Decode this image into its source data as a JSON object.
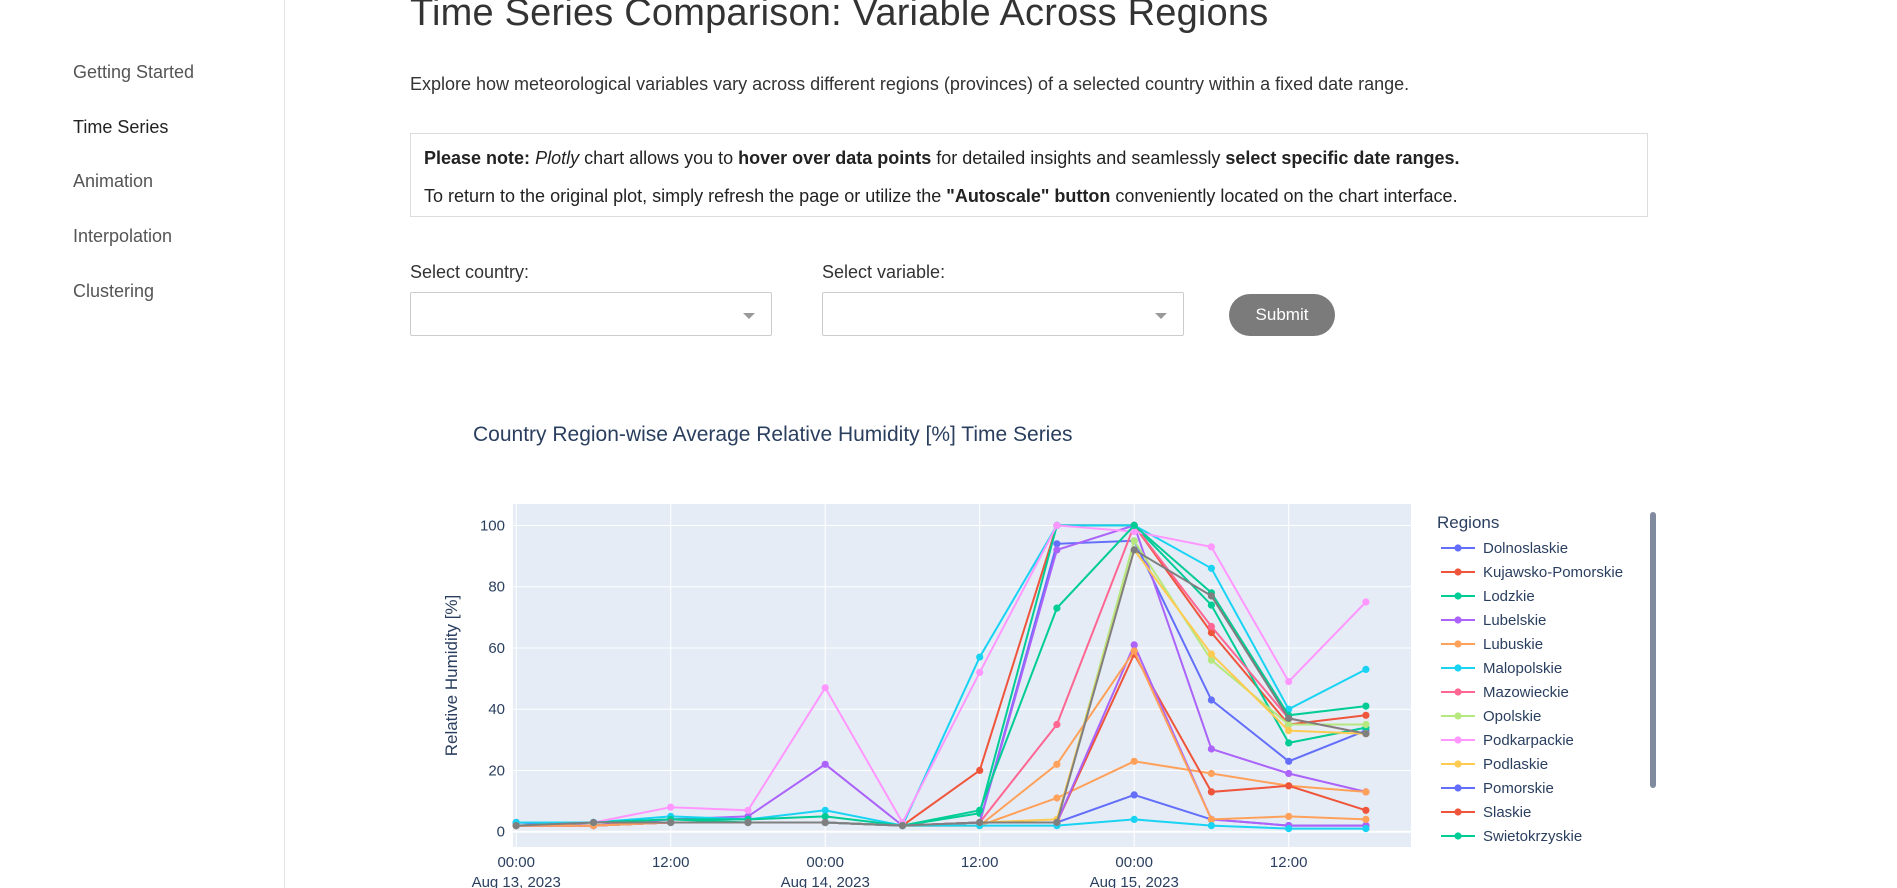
{
  "sidebar": {
    "items": [
      {
        "label": "Getting Started",
        "active": false
      },
      {
        "label": "Time Series",
        "active": true
      },
      {
        "label": "Animation",
        "active": false
      },
      {
        "label": "Interpolation",
        "active": false
      },
      {
        "label": "Clustering",
        "active": false
      }
    ]
  },
  "header": {
    "title": "Time Series Comparison: Variable Across Regions",
    "intro": "Explore how meteorological variables vary across different regions (provinces) of a selected country within a fixed date range."
  },
  "note": {
    "line1": {
      "lead": "Please note:",
      "plotly": "Plotly",
      "t1": " chart allows you to ",
      "b1": "hover over data points",
      "t2": " for detailed insights and seamlessly ",
      "b2": "select specific date ranges."
    },
    "line2": {
      "t1": "To return to the original plot, simply refresh the page or utilize the ",
      "b1": "\"Autoscale\" button",
      "t2": " conveniently located on the chart interface."
    }
  },
  "form": {
    "country_label": "Select country:",
    "country_value": "",
    "variable_label": "Select variable:",
    "variable_value": "",
    "submit_label": "Submit"
  },
  "chart_data": {
    "type": "line",
    "title": "Country Region-wise Average Relative Humidity [%] Time Series",
    "xlabel": "",
    "ylabel": "Relative Humidity [%]",
    "ylim": [
      -5,
      107
    ],
    "xlim": [
      "2023-08-12 23:45",
      "2023-08-15 21:30"
    ],
    "x_ticks": [
      "2023-08-13 00:00",
      "2023-08-13 12:00",
      "2023-08-14 00:00",
      "2023-08-14 12:00",
      "2023-08-15 00:00",
      "2023-08-15 12:00"
    ],
    "x_tick_labels": [
      [
        "00:00",
        "Aug 13, 2023"
      ],
      [
        "12:00",
        ""
      ],
      [
        "00:00",
        "Aug 14, 2023"
      ],
      [
        "12:00",
        ""
      ],
      [
        "00:00",
        "Aug 15, 2023"
      ],
      [
        "12:00",
        ""
      ]
    ],
    "y_ticks": [
      0,
      20,
      40,
      60,
      80,
      100
    ],
    "grid": true,
    "legend_title": "Regions",
    "legend_position": "right",
    "x": [
      "2023-08-13 00:00",
      "2023-08-13 06:00",
      "2023-08-13 12:00",
      "2023-08-13 18:00",
      "2023-08-14 00:00",
      "2023-08-14 06:00",
      "2023-08-14 12:00",
      "2023-08-14 18:00",
      "2023-08-15 00:00",
      "2023-08-15 06:00",
      "2023-08-15 12:00",
      "2023-08-15 18:00"
    ],
    "series": [
      {
        "name": "Dolnoslaskie",
        "color": "#636efa",
        "values": [
          3,
          2,
          3,
          3,
          3,
          2,
          3,
          94,
          95,
          43,
          23,
          33
        ]
      },
      {
        "name": "Kujawsko-Pomorskie",
        "color": "#ef553b",
        "values": [
          2,
          2,
          3,
          3,
          3,
          2,
          20,
          100,
          100,
          65,
          35,
          38
        ]
      },
      {
        "name": "Lodzkie",
        "color": "#00cc96",
        "values": [
          3,
          3,
          4,
          3,
          3,
          2,
          6,
          100,
          100,
          74,
          29,
          34
        ]
      },
      {
        "name": "Lubelskie",
        "color": "#ab63fa",
        "values": [
          2,
          2,
          4,
          5,
          22,
          2,
          3,
          92,
          100,
          27,
          19,
          13
        ]
      },
      {
        "name": "Lubuskie",
        "color": "#ffa15a",
        "values": [
          2,
          2,
          3,
          3,
          3,
          2,
          2,
          11,
          23,
          19,
          15,
          13
        ]
      },
      {
        "name": "Malopolskie",
        "color": "#19d3f3",
        "values": [
          3,
          3,
          5,
          4,
          7,
          2,
          57,
          100,
          100,
          86,
          40,
          53
        ]
      },
      {
        "name": "Mazowieckie",
        "color": "#ff6692",
        "values": [
          2,
          2,
          3,
          3,
          3,
          2,
          3,
          35,
          100,
          67,
          37,
          32
        ]
      },
      {
        "name": "Opolskie",
        "color": "#b6e880",
        "values": [
          2,
          2,
          3,
          3,
          3,
          2,
          3,
          3,
          95,
          56,
          35,
          35
        ]
      },
      {
        "name": "Podkarpackie",
        "color": "#ff97ff",
        "values": [
          3,
          3,
          8,
          7,
          47,
          3,
          52,
          100,
          98,
          93,
          49,
          75
        ]
      },
      {
        "name": "Podlaskie",
        "color": "#fecb52",
        "values": [
          2,
          2,
          3,
          3,
          3,
          2,
          3,
          4,
          92,
          58,
          33,
          32
        ]
      },
      {
        "name": "Pomorskie",
        "color": "#636efa",
        "values": [
          3,
          3,
          3,
          3,
          3,
          2,
          3,
          3,
          12,
          4,
          2,
          2
        ]
      },
      {
        "name": "Slaskie",
        "color": "#ef553b",
        "values": [
          2,
          2,
          3,
          3,
          3,
          2,
          3,
          3,
          58,
          13,
          15,
          7
        ]
      },
      {
        "name": "Swietokrzyskie",
        "color": "#00cc96",
        "values": [
          2,
          3,
          4,
          4,
          5,
          2,
          7,
          73,
          100,
          78,
          38,
          41
        ]
      },
      {
        "name": "",
        "color": "#ab63fa",
        "values": [
          2,
          2,
          3,
          3,
          3,
          2,
          3,
          3,
          61,
          4,
          2,
          2
        ]
      },
      {
        "name": "",
        "color": "#ffa15a",
        "values": [
          2,
          2,
          3,
          3,
          3,
          2,
          2,
          22,
          59,
          4,
          5,
          4
        ]
      },
      {
        "name": "",
        "color": "#19d3f3",
        "values": [
          3,
          3,
          3,
          3,
          3,
          2,
          2,
          2,
          4,
          2,
          1,
          1
        ]
      },
      {
        "name": "",
        "color": "#7f7f7f",
        "values": [
          2,
          3,
          3,
          3,
          3,
          2,
          3,
          3,
          92,
          77,
          37,
          32
        ]
      }
    ]
  }
}
